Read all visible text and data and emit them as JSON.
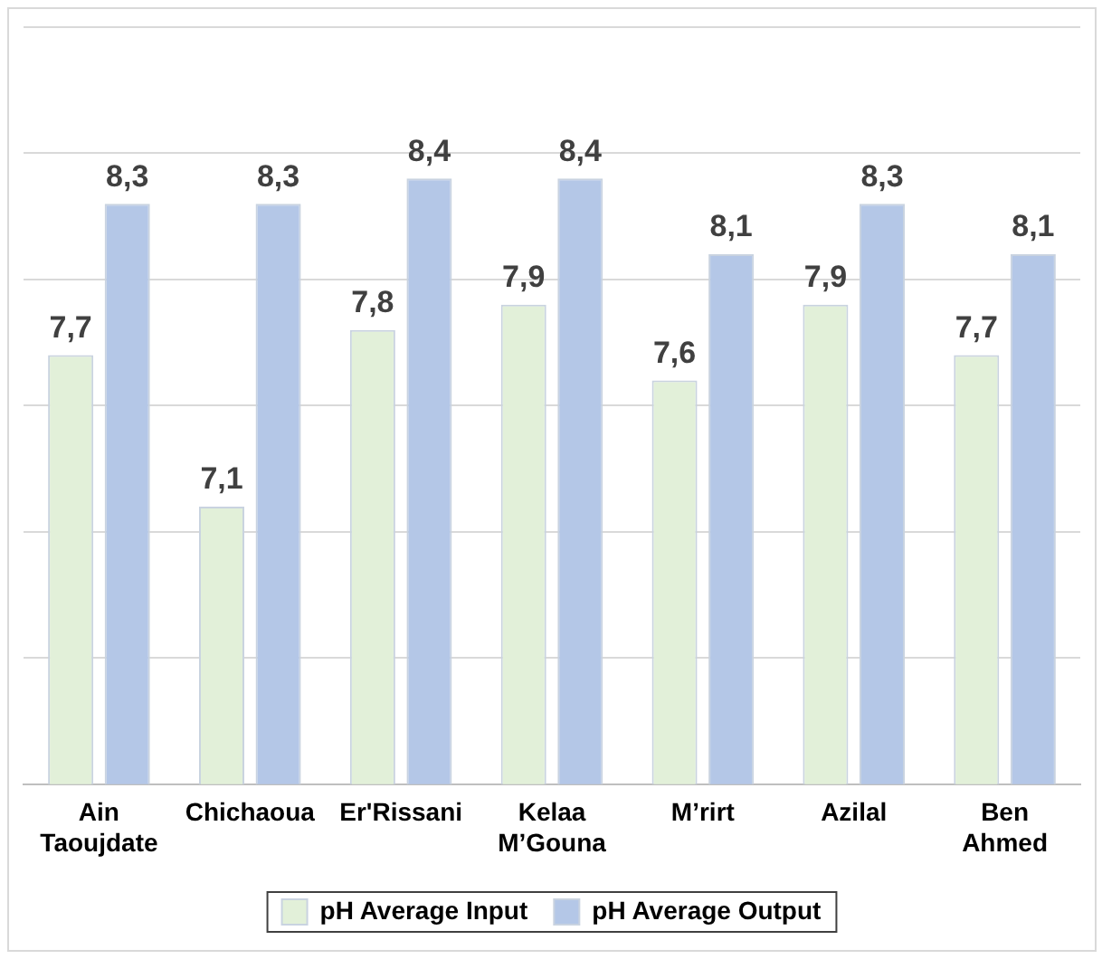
{
  "chart_data": {
    "type": "bar",
    "categories": [
      "Ain Taoujdate",
      "Chichaoua",
      "Er'Rissani",
      "Kelaa M’Gouna",
      "M’rirt",
      "Azilal",
      "Ben Ahmed"
    ],
    "series": [
      {
        "name": "pH Average Input",
        "color": "#e2f0d9",
        "values": [
          7.7,
          7.1,
          7.8,
          7.9,
          7.6,
          7.9,
          7.7
        ],
        "value_labels": [
          "7,7",
          "7,1",
          "7,8",
          "7,9",
          "7,6",
          "7,9",
          "7,7"
        ]
      },
      {
        "name": "pH Average Output",
        "color": "#b4c7e7",
        "values": [
          8.3,
          8.3,
          8.4,
          8.4,
          8.1,
          8.3,
          8.1
        ],
        "value_labels": [
          "8,3",
          "8,3",
          "8,4",
          "8,4",
          "8,1",
          "8,3",
          "8,1"
        ]
      }
    ],
    "ylim": [
      6,
      9
    ],
    "yticks": [
      {
        "value": 6,
        "label": null
      },
      {
        "value": 6.5,
        "label": null
      },
      {
        "value": 7,
        "label": null
      },
      {
        "value": 7.5,
        "label": null
      },
      {
        "value": 8,
        "label": null
      },
      {
        "value": 8.5,
        "label": null
      },
      {
        "value": 9,
        "label": null
      }
    ],
    "grid": "y",
    "tick_labels": "x",
    "legend": "bottom"
  }
}
